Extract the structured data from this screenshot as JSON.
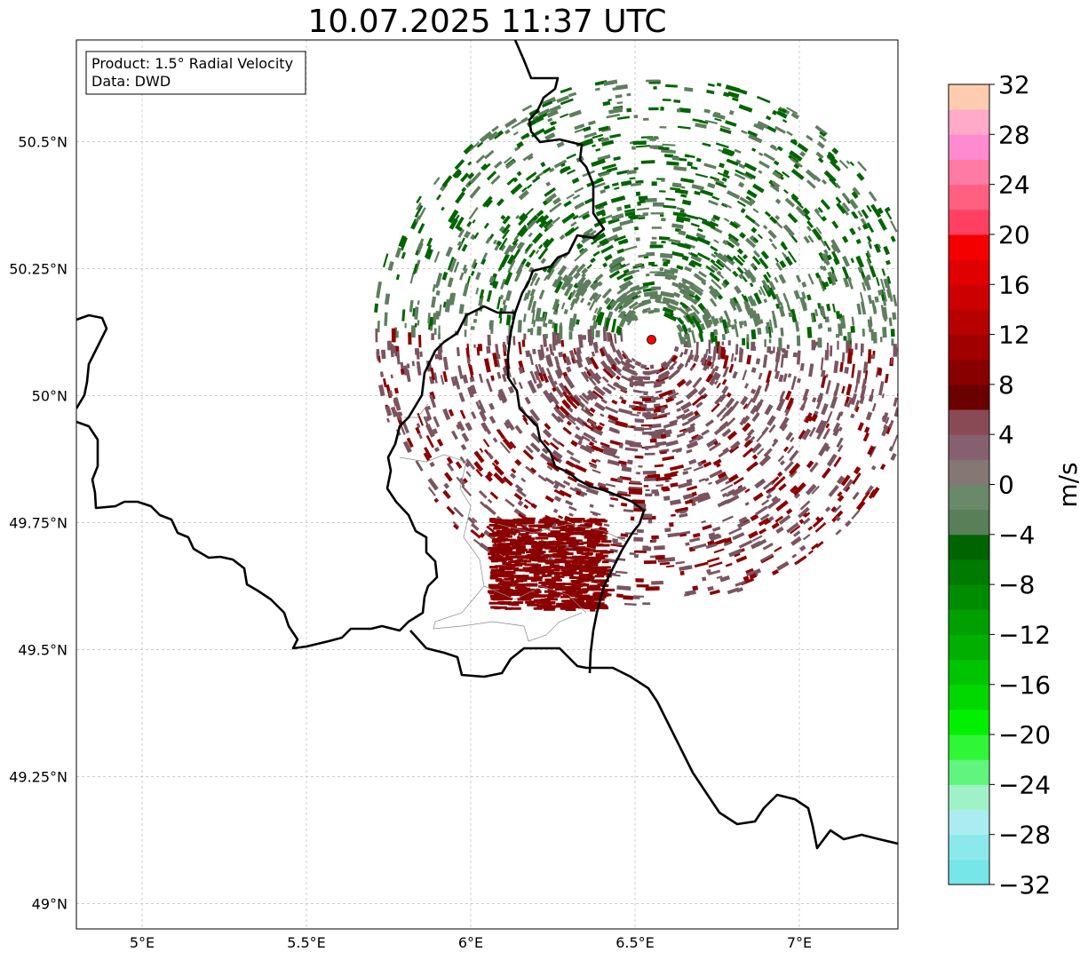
{
  "title": "10.07.2025 11:37 UTC",
  "info_box": {
    "product": "Product: 1.5° Radial Velocity",
    "data": "Data: DWD"
  },
  "axes": {
    "lon_range": [
      4.8,
      7.3
    ],
    "lat_range": [
      48.95,
      50.7
    ],
    "x_ticks": [
      {
        "value": 5.0,
        "label": "5°E"
      },
      {
        "value": 5.5,
        "label": "5.5°E"
      },
      {
        "value": 6.0,
        "label": "6°E"
      },
      {
        "value": 6.5,
        "label": "6.5°E"
      },
      {
        "value": 7.0,
        "label": "7°E"
      }
    ],
    "y_ticks": [
      {
        "value": 49.0,
        "label": "49°N"
      },
      {
        "value": 49.25,
        "label": "49.25°N"
      },
      {
        "value": 49.5,
        "label": "49.5°N"
      },
      {
        "value": 49.75,
        "label": "49.75°N"
      },
      {
        "value": 50.0,
        "label": "50°N"
      },
      {
        "value": 50.25,
        "label": "50.25°N"
      },
      {
        "value": 50.5,
        "label": "50.5°N"
      }
    ],
    "grid": true
  },
  "radar_site": {
    "lon": 6.55,
    "lat": 50.11,
    "color": "#ff0000"
  },
  "colorbar": {
    "label": "m/s",
    "min": -32,
    "max": 32,
    "tick_values": [
      -32,
      -28,
      -24,
      -20,
      -16,
      -12,
      -8,
      -4,
      0,
      4,
      8,
      12,
      16,
      20,
      24,
      28,
      32
    ],
    "tick_labels": [
      "−32",
      "−28",
      "−24",
      "−20",
      "−16",
      "−12",
      "−8",
      "−4",
      "0",
      "4",
      "8",
      "12",
      "16",
      "20",
      "24",
      "28",
      "32"
    ],
    "colors": [
      "#77e6e8",
      "#8ce9eb",
      "#aaecef",
      "#9ff2c8",
      "#60f57c",
      "#2ff636",
      "#00f000",
      "#00d800",
      "#00c400",
      "#00b000",
      "#00a000",
      "#008c00",
      "#007a00",
      "#006400",
      "#587f58",
      "#6a886a",
      "#857774",
      "#876070",
      "#8a4a55",
      "#6a0000",
      "#880000",
      "#a00000",
      "#b80000",
      "#cc0000",
      "#e00000",
      "#f50000",
      "#ff4060",
      "#ff6080",
      "#ff7aa4",
      "#ff8ad0",
      "#ffaac8",
      "#ffccb0"
    ]
  },
  "velocity_colors": {
    "strong_away": "#8b0000",
    "weak_away": "#7a5560",
    "weak_toward": "#5e7e5e",
    "strong_toward": "#006400"
  }
}
